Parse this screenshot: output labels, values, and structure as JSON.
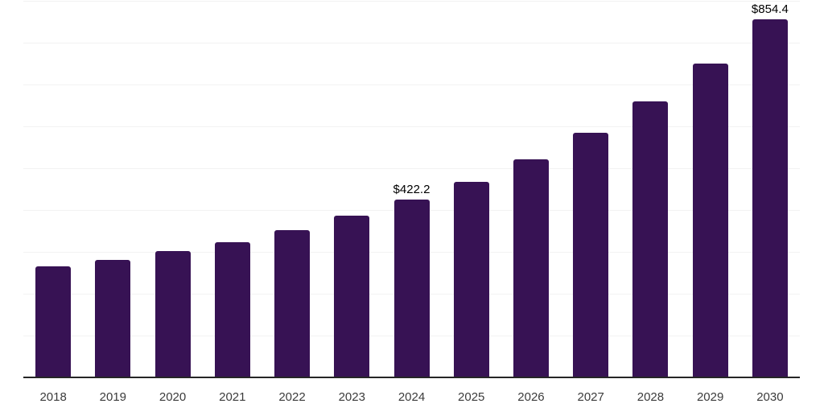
{
  "chart_data": {
    "type": "bar",
    "categories": [
      "2018",
      "2019",
      "2020",
      "2021",
      "2022",
      "2023",
      "2024",
      "2025",
      "2026",
      "2027",
      "2028",
      "2029",
      "2030"
    ],
    "values": [
      264.4,
      279.7,
      300.8,
      321.8,
      350.6,
      385.1,
      422.2,
      465.5,
      519.2,
      582.4,
      657.1,
      749.0,
      854.4
    ],
    "data_labels": [
      null,
      null,
      null,
      null,
      null,
      null,
      "$422.2",
      null,
      null,
      null,
      null,
      null,
      "$854.4"
    ],
    "title": "",
    "xlabel": "",
    "ylabel": "",
    "ylim": [
      0,
      900
    ],
    "gridline_step": 100,
    "grid": "horizontal",
    "legend_position": "none",
    "colors": {
      "bar": "#371254",
      "gridline": "#f2f2f2",
      "axis_line": "#262626",
      "tick_label": "#3b3b3b",
      "data_label": "#000000",
      "background": "#ffffff"
    }
  }
}
